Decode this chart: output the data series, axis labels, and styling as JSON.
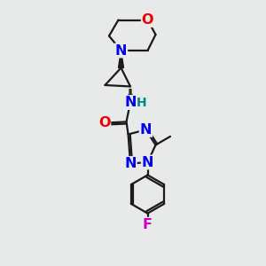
{
  "bg_color": "#e8eaea",
  "bond_color": "#1a1a1a",
  "N_color": "#0000ee",
  "O_color": "#ee0000",
  "F_color": "#cc00cc",
  "H_color": "#008888",
  "line_width": 1.6,
  "font_size": 11.5,
  "fig_w": 3.0,
  "fig_h": 3.0,
  "dpi": 100,
  "xlim": [
    0,
    10
  ],
  "ylim": [
    0,
    10
  ]
}
